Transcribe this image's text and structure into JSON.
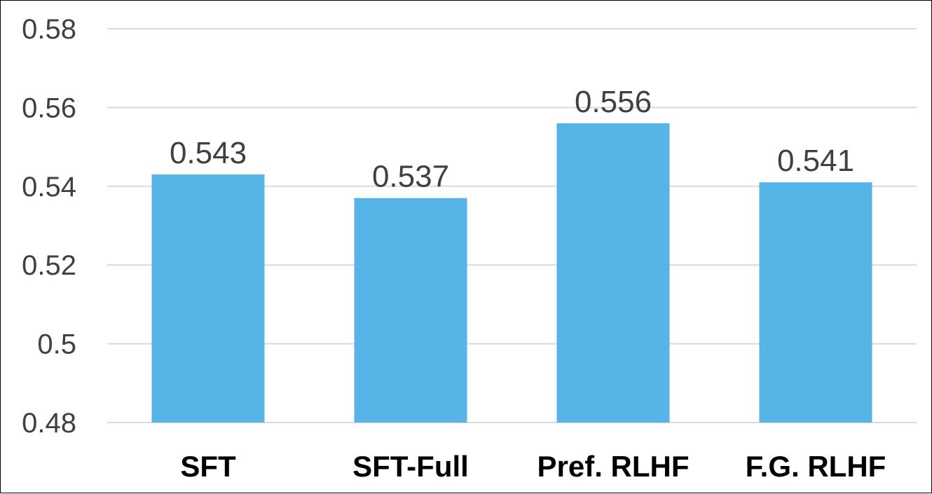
{
  "chart_data": {
    "type": "bar",
    "categories": [
      "SFT",
      "SFT-Full",
      "Pref. RLHF",
      "F.G. RLHF"
    ],
    "values": [
      0.543,
      0.537,
      0.556,
      0.541
    ],
    "value_labels": [
      "0.543",
      "0.537",
      "0.556",
      "0.541"
    ],
    "title": "",
    "xlabel": "",
    "ylabel": "",
    "ylim": [
      0.48,
      0.58
    ],
    "yticks": [
      "0.58",
      "0.56",
      "0.54",
      "0.52",
      "0.5",
      "0.48"
    ],
    "grid": true,
    "legend": "none",
    "bar_color": "#56B4E6",
    "grid_color": "#D9D9D9"
  }
}
